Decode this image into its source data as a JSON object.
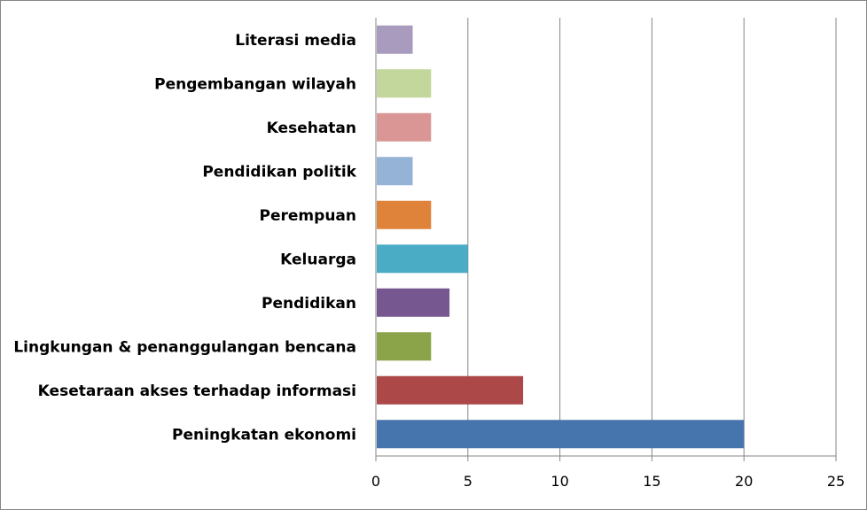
{
  "chart_data": {
    "type": "bar",
    "orientation": "horizontal",
    "categories": [
      "Literasi media",
      "Pengembangan wilayah",
      "Kesehatan",
      "Pendidikan politik",
      "Perempuan",
      "Keluarga",
      "Pendidikan",
      "Lingkungan & penanggulangan bencana",
      "Kesetaraan akses terhadap informasi",
      "Peningkatan ekonomi"
    ],
    "values": [
      2,
      3,
      3,
      2,
      3,
      5,
      4,
      3,
      8,
      20
    ],
    "colors": [
      "#a99bbd",
      "#c3d69b",
      "#d99694",
      "#95b3d7",
      "#e0833a",
      "#4bacc6",
      "#76578f",
      "#8ba449",
      "#ac4848",
      "#4674ad"
    ],
    "xlim": [
      0,
      25
    ],
    "xticks": [
      "0",
      "5",
      "10",
      "15",
      "20",
      "25"
    ],
    "grid": "vertical",
    "legend": "none",
    "title": "",
    "xlabel": "",
    "ylabel": ""
  }
}
